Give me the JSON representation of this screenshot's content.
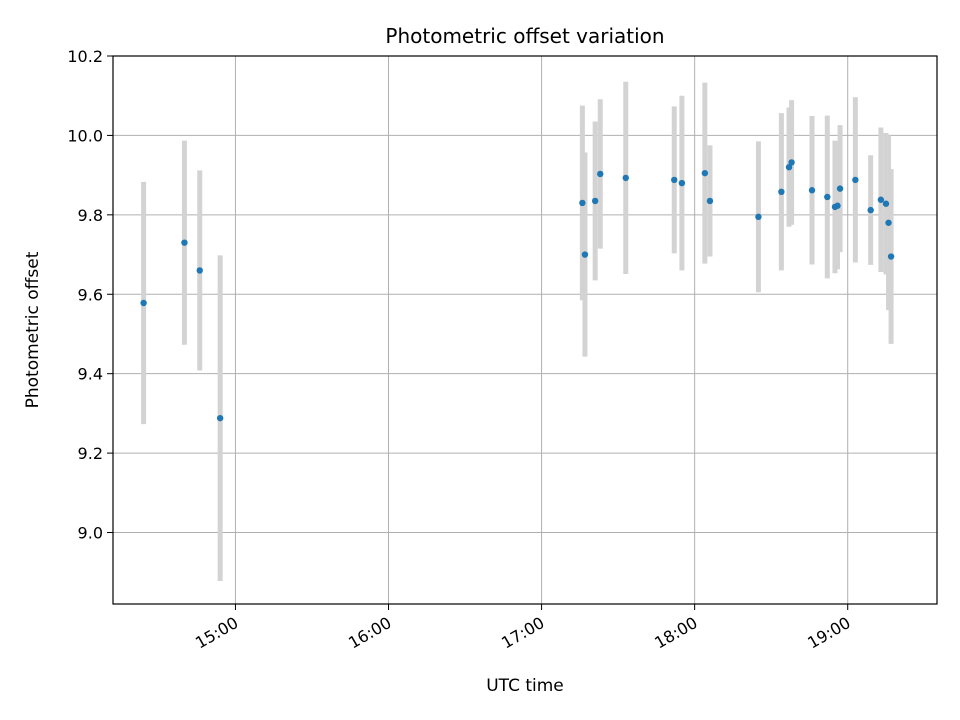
{
  "chart_data": {
    "type": "scatter",
    "title": "Photometric offset variation",
    "xlabel": "UTC time",
    "ylabel": "Photometric offset",
    "x_ticks": [
      "15:00",
      "16:00",
      "17:00",
      "18:00",
      "19:00"
    ],
    "y_ticks": [
      "9.0",
      "9.2",
      "9.4",
      "9.6",
      "9.8",
      "10.0",
      "10.2"
    ],
    "xlim": [
      "14:12",
      "19:35"
    ],
    "ylim": [
      8.82,
      10.2
    ],
    "grid": true,
    "marker_color": "#1f77b4",
    "errorbar_color": "#d3d3d3",
    "series": [
      {
        "points": [
          {
            "x": "14:24",
            "y": 9.578,
            "err": 0.305
          },
          {
            "x": "14:40",
            "y": 9.73,
            "err": 0.257
          },
          {
            "x": "14:46",
            "y": 9.66,
            "err": 0.252
          },
          {
            "x": "14:54",
            "y": 9.288,
            "err": 0.41
          },
          {
            "x": "17:16",
            "y": 9.83,
            "err": 0.245
          },
          {
            "x": "17:17",
            "y": 9.7,
            "err": 0.257
          },
          {
            "x": "17:21",
            "y": 9.835,
            "err": 0.2
          },
          {
            "x": "17:23",
            "y": 9.903,
            "err": 0.188
          },
          {
            "x": "17:33",
            "y": 9.893,
            "err": 0.242
          },
          {
            "x": "17:52",
            "y": 9.888,
            "err": 0.185
          },
          {
            "x": "17:55",
            "y": 9.88,
            "err": 0.22
          },
          {
            "x": "18:04",
            "y": 9.905,
            "err": 0.228
          },
          {
            "x": "18:06",
            "y": 9.835,
            "err": 0.14
          },
          {
            "x": "18:25",
            "y": 9.795,
            "err": 0.19
          },
          {
            "x": "18:34",
            "y": 9.858,
            "err": 0.198
          },
          {
            "x": "18:37",
            "y": 9.92,
            "err": 0.15
          },
          {
            "x": "18:38",
            "y": 9.932,
            "err": 0.157
          },
          {
            "x": "18:46",
            "y": 9.862,
            "err": 0.187
          },
          {
            "x": "18:52",
            "y": 9.845,
            "err": 0.205
          },
          {
            "x": "18:55",
            "y": 9.82,
            "err": 0.167
          },
          {
            "x": "18:56",
            "y": 9.823,
            "err": 0.16
          },
          {
            "x": "18:57",
            "y": 9.866,
            "err": 0.16
          },
          {
            "x": "19:03",
            "y": 9.888,
            "err": 0.208
          },
          {
            "x": "19:09",
            "y": 9.812,
            "err": 0.138
          },
          {
            "x": "19:13",
            "y": 9.838,
            "err": 0.182
          },
          {
            "x": "19:15",
            "y": 9.828,
            "err": 0.178
          },
          {
            "x": "19:16",
            "y": 9.78,
            "err": 0.22
          },
          {
            "x": "19:17",
            "y": 9.695,
            "err": 0.22
          }
        ]
      }
    ]
  }
}
